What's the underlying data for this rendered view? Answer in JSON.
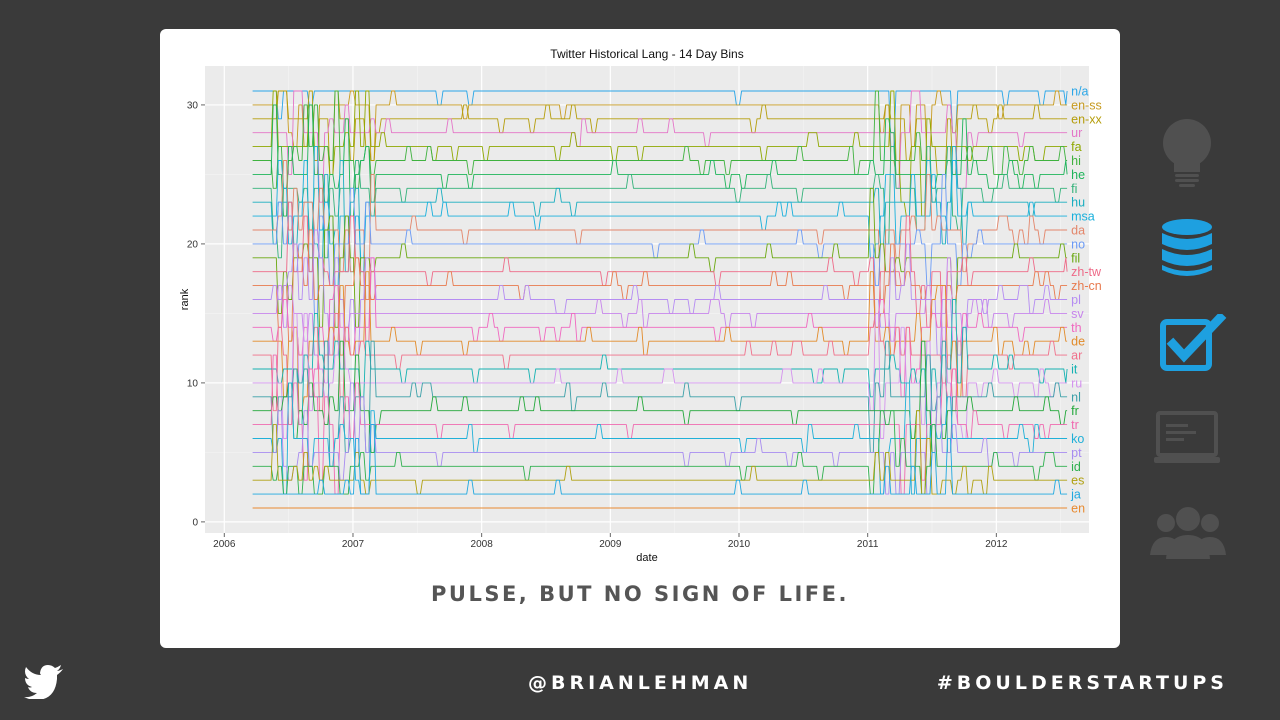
{
  "slide": {
    "caption": "PULSE, BUT NO SIGN OF LIFE.",
    "handle": "@BRIANLEHMAN",
    "hashtag": "#BOULDERSTARTUPS"
  },
  "rail_icons": [
    {
      "name": "lightbulb-icon",
      "state": "inactive"
    },
    {
      "name": "database-icon",
      "state": "active"
    },
    {
      "name": "checkbox-icon",
      "state": "active"
    },
    {
      "name": "laptop-icon",
      "state": "inactive"
    },
    {
      "name": "users-icon",
      "state": "inactive"
    }
  ],
  "colors": {
    "active": "#1ea0e0",
    "inactive": "#505050",
    "panel": "#ebebeb"
  },
  "chart_data": {
    "type": "line",
    "title": "Twitter Historical Lang - 14 Day Bins",
    "xlabel": "date",
    "ylabel": "rank",
    "xlim": [
      2005.85,
      2012.72
    ],
    "ylim": [
      -0.8,
      32.8
    ],
    "x_ticks": [
      "2006",
      "2007",
      "2008",
      "2009",
      "2010",
      "2011",
      "2012"
    ],
    "y_ticks": [
      "0",
      "10",
      "20",
      "30"
    ],
    "series_start": 2006.22,
    "series_end": 2012.55,
    "legend_position": "right (inline labels)",
    "series": [
      {
        "name": "n/a",
        "rank": 31,
        "color": "#29a6e8"
      },
      {
        "name": "en-ss",
        "rank": 30,
        "color": "#c79a1e"
      },
      {
        "name": "en-xx",
        "rank": 29,
        "color": "#b59d0a"
      },
      {
        "name": "ur",
        "rank": 28,
        "color": "#e475c8"
      },
      {
        "name": "fa",
        "rank": 27,
        "color": "#8fa800"
      },
      {
        "name": "hi",
        "rank": 26,
        "color": "#3fb23f"
      },
      {
        "name": "he",
        "rank": 25,
        "color": "#1eb45a"
      },
      {
        "name": "fi",
        "rank": 24,
        "color": "#33b27a"
      },
      {
        "name": "hu",
        "rank": 23,
        "color": "#19aec0"
      },
      {
        "name": "msa",
        "rank": 22,
        "color": "#18b0dc"
      },
      {
        "name": "da",
        "rank": 21,
        "color": "#e3866b"
      },
      {
        "name": "no",
        "rank": 20,
        "color": "#6b9af5"
      },
      {
        "name": "fil",
        "rank": 19,
        "color": "#6aa80f"
      },
      {
        "name": "zh-tw",
        "rank": 18,
        "color": "#ee6a88"
      },
      {
        "name": "zh-cn",
        "rank": 17,
        "color": "#e87a4e"
      },
      {
        "name": "pl",
        "rank": 16,
        "color": "#b58cf2"
      },
      {
        "name": "sv",
        "rank": 15,
        "color": "#c784ec"
      },
      {
        "name": "th",
        "rank": 14,
        "color": "#f068c0"
      },
      {
        "name": "de",
        "rank": 13,
        "color": "#e28b2a"
      },
      {
        "name": "ar",
        "rank": 12,
        "color": "#f0708a"
      },
      {
        "name": "it",
        "rank": 11,
        "color": "#14b2b2"
      },
      {
        "name": "ru",
        "rank": 10,
        "color": "#d493ee"
      },
      {
        "name": "nl",
        "rank": 9,
        "color": "#3ba0a8"
      },
      {
        "name": "fr",
        "rank": 8,
        "color": "#22a83a"
      },
      {
        "name": "tr",
        "rank": 7,
        "color": "#f06ab0"
      },
      {
        "name": "ko",
        "rank": 6,
        "color": "#20b0d8"
      },
      {
        "name": "pt",
        "rank": 5,
        "color": "#a88cf0"
      },
      {
        "name": "id",
        "rank": 4,
        "color": "#2eb04e"
      },
      {
        "name": "es",
        "rank": 3,
        "color": "#b0a010"
      },
      {
        "name": "ja",
        "rank": 2,
        "color": "#20a8e0"
      },
      {
        "name": "en",
        "rank": 1,
        "color": "#e88a30"
      }
    ]
  }
}
